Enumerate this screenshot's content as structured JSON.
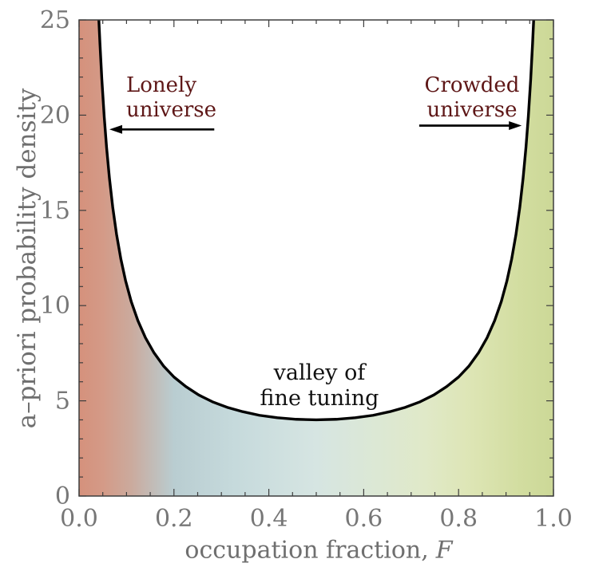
{
  "figure": {
    "background": "#ffffff"
  },
  "axes": {
    "y_title": "a–priori probability density",
    "x_title_prefix": "occupation fraction,",
    "x_title_var": "F"
  },
  "annotations": {
    "lonely": {
      "line1": "Lonely",
      "line2": "universe",
      "color": "#5e1717"
    },
    "crowded": {
      "line1": "Crowded",
      "line2": "universe",
      "color": "#5e1717"
    },
    "valley": {
      "line1": "valley of",
      "line2": "fine tuning",
      "color": "#111111"
    }
  },
  "chart_data": {
    "type": "line",
    "title": "",
    "xlabel": "occupation fraction, F",
    "ylabel": "a–priori probability density",
    "xlim": [
      0,
      1
    ],
    "ylim": [
      0,
      25
    ],
    "grid": false,
    "legend": "none",
    "x_major_ticks": [
      {
        "v": 0.0,
        "label": "0.0"
      },
      {
        "v": 0.2,
        "label": "0.2"
      },
      {
        "v": 0.4,
        "label": "0.4"
      },
      {
        "v": 0.6,
        "label": "0.6"
      },
      {
        "v": 0.8,
        "label": "0.8"
      },
      {
        "v": 1.0,
        "label": "1.0"
      }
    ],
    "x_minor_step": 0.05,
    "y_major_ticks": [
      {
        "v": 0,
        "label": "0"
      },
      {
        "v": 5,
        "label": "5"
      },
      {
        "v": 10,
        "label": "10"
      },
      {
        "v": 15,
        "label": "15"
      },
      {
        "v": 20,
        "label": "20"
      },
      {
        "v": 25,
        "label": "25"
      }
    ],
    "y_minor_step": 1,
    "curve": {
      "formula": "p(F) = 1 / (F (1 - F))",
      "min_value": 4,
      "min_at": 0.5,
      "clip_top": 25,
      "points": [
        [
          0.0417,
          25.0
        ],
        [
          0.044,
          23.77
        ],
        [
          0.048,
          21.88
        ],
        [
          0.053,
          19.92
        ],
        [
          0.058,
          18.3
        ],
        [
          0.064,
          16.69
        ],
        [
          0.071,
          15.16
        ],
        [
          0.079,
          13.74
        ],
        [
          0.088,
          12.46
        ],
        [
          0.098,
          11.31
        ],
        [
          0.11,
          10.21
        ],
        [
          0.124,
          9.21
        ],
        [
          0.14,
          8.31
        ],
        [
          0.158,
          7.52
        ],
        [
          0.178,
          6.83
        ],
        [
          0.2,
          6.25
        ],
        [
          0.225,
          5.75
        ],
        [
          0.252,
          5.31
        ],
        [
          0.281,
          4.95
        ],
        [
          0.312,
          4.66
        ],
        [
          0.345,
          4.43
        ],
        [
          0.38,
          4.24
        ],
        [
          0.418,
          4.11
        ],
        [
          0.458,
          4.03
        ],
        [
          0.5,
          4.0
        ],
        [
          0.542,
          4.03
        ],
        [
          0.582,
          4.11
        ],
        [
          0.62,
          4.24
        ],
        [
          0.655,
          4.43
        ],
        [
          0.688,
          4.66
        ],
        [
          0.719,
          4.95
        ],
        [
          0.748,
          5.31
        ],
        [
          0.775,
          5.75
        ],
        [
          0.8,
          6.25
        ],
        [
          0.822,
          6.83
        ],
        [
          0.842,
          7.52
        ],
        [
          0.86,
          8.31
        ],
        [
          0.876,
          9.21
        ],
        [
          0.89,
          10.21
        ],
        [
          0.902,
          11.31
        ],
        [
          0.912,
          12.46
        ],
        [
          0.921,
          13.74
        ],
        [
          0.929,
          15.16
        ],
        [
          0.936,
          16.69
        ],
        [
          0.942,
          18.3
        ],
        [
          0.947,
          19.92
        ],
        [
          0.952,
          21.88
        ],
        [
          0.956,
          23.77
        ],
        [
          0.9583,
          25.0
        ]
      ]
    },
    "fill_gradient": [
      {
        "offset": 0.0,
        "color": "#d5917c"
      },
      {
        "offset": 0.05,
        "color": "#d49a87"
      },
      {
        "offset": 0.11,
        "color": "#cbaa9d"
      },
      {
        "offset": 0.2,
        "color": "#b9cdd1"
      },
      {
        "offset": 0.33,
        "color": "#c6dadc"
      },
      {
        "offset": 0.5,
        "color": "#d6e5e2"
      },
      {
        "offset": 0.63,
        "color": "#dce8d4"
      },
      {
        "offset": 0.73,
        "color": "#e0e9c8"
      },
      {
        "offset": 0.83,
        "color": "#dde5b4"
      },
      {
        "offset": 0.93,
        "color": "#d2dda0"
      },
      {
        "offset": 1.0,
        "color": "#ccd897"
      }
    ],
    "styles": {
      "curve_color": "#000000",
      "curve_width": 3.4,
      "frame_color": "#3d3d3d",
      "tick_color": "#3d3d3d",
      "tick_label_color": "#777777",
      "axis_label_color": "#6f6f6f",
      "arrow_color": "#000000"
    },
    "arrows": [
      {
        "name": "lonely-arrow",
        "points_to": "F = 0",
        "x_tail": 0.285,
        "x_tip": 0.064,
        "y": 19.25
      },
      {
        "name": "crowded-arrow",
        "points_to": "F = 1",
        "x_tail": 0.717,
        "x_tip": 0.933,
        "y": 19.45
      }
    ]
  }
}
